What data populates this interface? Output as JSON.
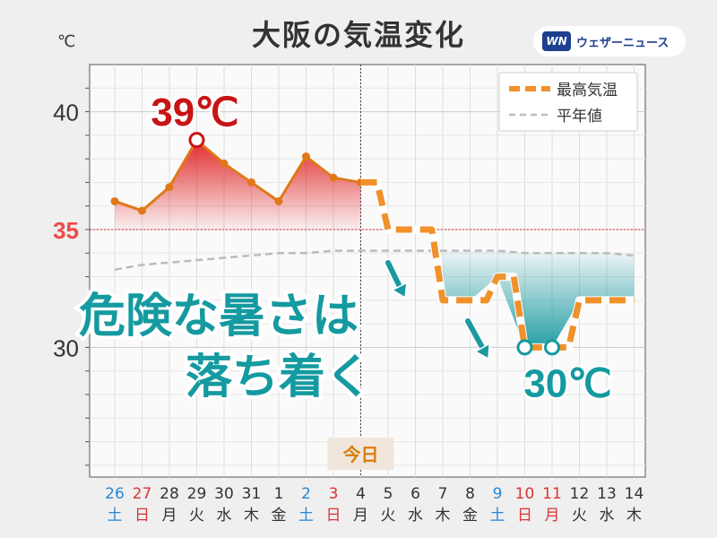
{
  "title": "大阪の気温変化",
  "logo": {
    "mark": "WN",
    "text": "ウェザーニュース"
  },
  "y_unit": "℃",
  "today_label": "今日",
  "annotations": {
    "peak_label": "39℃",
    "low_label": "30℃",
    "message_line1": "危険な暑さは",
    "message_line2": "落ち着く"
  },
  "colors": {
    "hot": "#e02020",
    "cool": "#1a9aa0",
    "forecast": "#f0912a",
    "normal": "#bbbbbb",
    "text_red": "#c81414",
    "text_teal": "#149aa0"
  },
  "chart_data": {
    "type": "line",
    "title": "大阪の気温変化",
    "ylabel": "℃",
    "ylim": [
      24.5,
      42
    ],
    "yticks": [
      30,
      35,
      40
    ],
    "threshold": 35,
    "categories": [
      "26",
      "27",
      "28",
      "29",
      "30",
      "31",
      "1",
      "2",
      "3",
      "4",
      "5",
      "6",
      "7",
      "8",
      "9",
      "10",
      "11",
      "12",
      "13",
      "14"
    ],
    "weekdays": [
      "土",
      "日",
      "月",
      "火",
      "水",
      "木",
      "金",
      "土",
      "日",
      "月",
      "火",
      "水",
      "木",
      "金",
      "土",
      "日",
      "月",
      "火",
      "水",
      "木"
    ],
    "day_colors": [
      "blue",
      "red",
      "",
      "",
      "",
      "",
      "",
      "blue",
      "red",
      "",
      "",
      "",
      "",
      "",
      "blue",
      "red",
      "red",
      "",
      "",
      ""
    ],
    "today_index": 9,
    "series": [
      {
        "name": "最高気温",
        "style": "observed",
        "values": [
          36.2,
          35.8,
          36.8,
          38.8,
          37.8,
          37.0,
          36.2,
          38.1,
          37.2,
          37.0,
          null,
          null,
          null,
          null,
          null,
          null,
          null,
          null,
          null,
          null
        ]
      },
      {
        "name": "最高気温",
        "style": "forecast",
        "values": [
          null,
          null,
          null,
          null,
          null,
          null,
          null,
          null,
          null,
          37.0,
          35.0,
          35.0,
          32.0,
          32.0,
          33.0,
          30.0,
          30.0,
          32.0,
          32.0,
          32.0
        ]
      },
      {
        "name": "平年値",
        "style": "normal",
        "values": [
          33.3,
          33.5,
          33.6,
          33.7,
          33.8,
          33.9,
          34.0,
          34.0,
          34.1,
          34.1,
          34.1,
          34.1,
          34.1,
          34.1,
          34.1,
          34.0,
          34.0,
          34.0,
          34.0,
          33.9
        ]
      }
    ],
    "legend": [
      "最高気温",
      "平年値"
    ],
    "legend_position": "top-right",
    "grid": true
  }
}
